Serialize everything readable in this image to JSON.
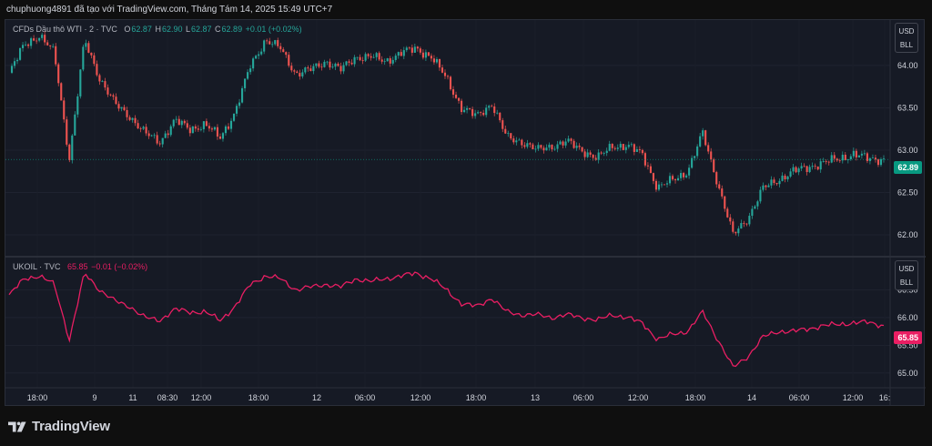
{
  "header": {
    "credit": "chuphuong4891 đã tạo với TradingView.com, Tháng Tám 14, 2025 15:49 UTC+7"
  },
  "panes": {
    "wti": {
      "name": "CFDs Dầu thô WTI · 2 · TVC",
      "o_label": "O",
      "o_value": "62.87",
      "h_label": "H",
      "h_value": "62.90",
      "l_label": "L",
      "l_value": "62.87",
      "c_label": "C",
      "c_value": "62.89",
      "change": "+0.01 (+0.02%)",
      "currency": "USD",
      "unit": "BLL",
      "last_price": "62.89",
      "y_ticks": [
        "64.00",
        "63.50",
        "63.00",
        "62.50",
        "62.00"
      ],
      "color_up": "#26a69a",
      "color_down": "#ef5350"
    },
    "ukoil": {
      "name": "UKOIL · TVC",
      "value": "65.85",
      "change": "−0.01 (−0.02%)",
      "currency": "USD",
      "unit": "BLL",
      "last_price": "65.85",
      "y_ticks": [
        "66.50",
        "66.00",
        "65.50",
        "65.00"
      ],
      "line_color": "#e91e63"
    }
  },
  "x_axis": {
    "labels": [
      "18:00",
      "9",
      "11",
      "08:30",
      "12:00",
      "18:00",
      "12",
      "06:00",
      "12:00",
      "18:00",
      "13",
      "06:00",
      "12:00",
      "18:00",
      "14",
      "06:00",
      "12:00",
      "16:"
    ]
  },
  "footer": {
    "brand": "TradingView"
  },
  "chart_data": [
    {
      "type": "candlestick",
      "title": "CFDs Dầu thô WTI · 2 · TVC",
      "ylabel": "USD BLL",
      "ylim": [
        61.85,
        64.3
      ],
      "x_tick_labels": [
        "18:00",
        "9",
        "11",
        "08:30",
        "12:00",
        "18:00",
        "12",
        "06:00",
        "12:00",
        "18:00",
        "13",
        "06:00",
        "12:00",
        "18:00",
        "14",
        "06:00",
        "12:00",
        "16:"
      ],
      "series": [
        {
          "name": "CFDs Dầu thô WTI",
          "values": [
            63.9,
            64.25,
            64.35,
            64.15,
            62.9,
            64.3,
            63.85,
            63.55,
            63.4,
            63.2,
            63.1,
            63.35,
            63.25,
            63.3,
            63.15,
            63.45,
            64.0,
            64.3,
            64.2,
            63.9,
            63.95,
            64.05,
            63.95,
            64.1,
            64.1,
            64.05,
            64.15,
            64.2,
            64.1,
            63.85,
            63.5,
            63.4,
            63.55,
            63.15,
            63.1,
            63.0,
            63.05,
            63.1,
            63.0,
            62.9,
            63.05,
            63.05,
            62.95,
            62.55,
            62.65,
            62.75,
            63.2,
            62.6,
            62.0,
            62.2,
            62.55,
            62.65,
            62.75,
            62.8,
            62.85,
            62.9,
            62.95,
            62.9,
            62.89
          ]
        }
      ],
      "grid": true
    },
    {
      "type": "line",
      "title": "UKOIL · TVC",
      "ylabel": "USD BLL",
      "ylim": [
        64.8,
        66.9
      ],
      "series": [
        {
          "name": "UKOIL",
          "values": [
            66.4,
            66.7,
            66.75,
            66.6,
            65.6,
            66.8,
            66.5,
            66.3,
            66.2,
            66.0,
            65.95,
            66.15,
            66.1,
            66.1,
            65.95,
            66.2,
            66.6,
            66.75,
            66.7,
            66.5,
            66.55,
            66.6,
            66.55,
            66.7,
            66.65,
            66.7,
            66.75,
            66.8,
            66.7,
            66.5,
            66.25,
            66.2,
            66.35,
            66.1,
            66.05,
            66.05,
            66.0,
            66.05,
            66.0,
            65.95,
            66.05,
            66.0,
            65.9,
            65.6,
            65.7,
            65.75,
            66.1,
            65.6,
            65.1,
            65.3,
            65.65,
            65.75,
            65.75,
            65.8,
            65.85,
            65.88,
            65.9,
            65.92,
            65.85
          ]
        }
      ],
      "grid": true
    }
  ]
}
